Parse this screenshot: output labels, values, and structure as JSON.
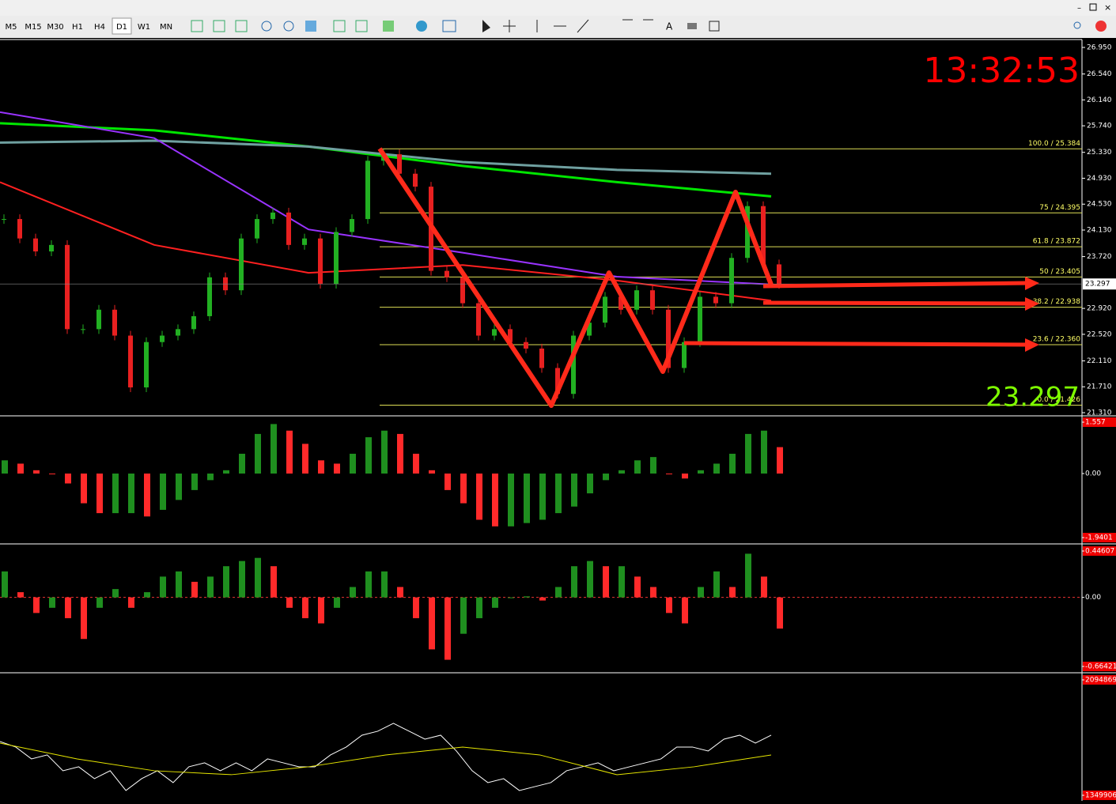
{
  "toolbar": {
    "timeframes": [
      "M5",
      "M15",
      "M30",
      "H1",
      "H4",
      "D1",
      "W1",
      "MN"
    ]
  },
  "clock": "13:32:53",
  "main_chart": {
    "type": "candlestick",
    "price_ticks": [
      {
        "value": 26.95,
        "label": "26.950"
      },
      {
        "value": 26.54,
        "label": "26.540"
      },
      {
        "value": 26.14,
        "label": "26.140"
      },
      {
        "value": 25.74,
        "label": "25.740"
      },
      {
        "value": 25.33,
        "label": "25.330"
      },
      {
        "value": 24.93,
        "label": "24.930"
      },
      {
        "value": 24.53,
        "label": "24.530"
      },
      {
        "value": 24.13,
        "label": "24.130"
      },
      {
        "value": 23.72,
        "label": "23.720"
      },
      {
        "value": 22.92,
        "label": "22.920"
      },
      {
        "value": 22.52,
        "label": "22.520"
      },
      {
        "value": 22.11,
        "label": "22.110"
      },
      {
        "value": 21.71,
        "label": "21.710"
      },
      {
        "value": 21.31,
        "label": "21.310"
      }
    ],
    "current_price": {
      "value": 23.297,
      "label": "23.297"
    },
    "closes": [
      24.3,
      24.0,
      23.8,
      23.9,
      22.6,
      22.6,
      22.9,
      22.5,
      21.7,
      22.4,
      22.5,
      22.6,
      22.8,
      23.4,
      23.2,
      24.0,
      24.3,
      24.4,
      23.9,
      24.0,
      23.3,
      24.1,
      24.3,
      25.2,
      25.3,
      25.0,
      24.8,
      23.5,
      23.4,
      23.0,
      22.5,
      22.6,
      22.4,
      22.3,
      22.0,
      21.6,
      22.5,
      22.7,
      23.1,
      22.9,
      23.2,
      22.9,
      22.0,
      22.4,
      23.1,
      23.0,
      23.7,
      24.5,
      23.6,
      23.297
    ],
    "moving_averages": [
      {
        "color": "#00e600",
        "values": [
          25.78,
          25.67,
          25.42,
          25.12,
          24.87,
          24.65
        ]
      },
      {
        "color": "#6fa0a0",
        "values": [
          25.48,
          25.51,
          25.42,
          25.18,
          25.06,
          25.0
        ]
      },
      {
        "color": "#9933ff",
        "values": [
          25.95,
          25.55,
          24.14,
          23.78,
          23.41,
          23.29
        ]
      },
      {
        "color": "#ff2020",
        "values": [
          24.87,
          23.9,
          23.47,
          23.59,
          23.35,
          23.04
        ]
      }
    ],
    "fibonacci": [
      {
        "label": "100.0  /  25.384",
        "value": 25.384
      },
      {
        "label": "75  /  24.395",
        "value": 24.395
      },
      {
        "label": "61.8  /  23.872",
        "value": 23.872
      },
      {
        "label": "50  /  23.405",
        "value": 23.405
      },
      {
        "label": "38.2  /  22.938",
        "value": 22.938
      },
      {
        "label": "23.6  /  22.360",
        "value": 22.36
      },
      {
        "label": "0.0  /  21.426",
        "value": 21.426
      }
    ]
  },
  "indicator_panels": [
    {
      "type": "histogram",
      "ticks": [
        1.557,
        {
          "value": 0,
          "label": "0.00"
        },
        -1.9401
      ],
      "values": [
        0.4,
        0.3,
        0.1,
        0,
        -0.3,
        -0.9,
        -1.2,
        -1.2,
        -1.2,
        -1.3,
        -1.1,
        -0.8,
        -0.5,
        -0.2,
        0.1,
        0.6,
        1.2,
        1.5,
        1.3,
        0.9,
        0.4,
        0.3,
        0.6,
        1.1,
        1.3,
        1.2,
        0.6,
        0.1,
        -0.5,
        -0.9,
        -1.4,
        -1.6,
        -1.6,
        -1.5,
        -1.4,
        -1.2,
        -1.0,
        -0.6,
        -0.2,
        0.1,
        0.4,
        0.5,
        0,
        -0.15,
        0.1,
        0.3,
        0.6,
        1.2,
        1.3,
        0.8
      ]
    },
    {
      "type": "histogram",
      "ticks": [
        0.44607,
        {
          "value": 0,
          "label": "0.00"
        },
        -0.66421
      ],
      "values": [
        0.25,
        0.05,
        -0.15,
        -0.1,
        -0.2,
        -0.4,
        -0.1,
        0.08,
        -0.1,
        0.05,
        0.2,
        0.25,
        0.15,
        0.2,
        0.3,
        0.35,
        0.38,
        0.3,
        -0.1,
        -0.2,
        -0.25,
        -0.1,
        0.1,
        0.25,
        0.25,
        0.1,
        -0.2,
        -0.5,
        -0.6,
        -0.35,
        -0.2,
        -0.1,
        0,
        0.01,
        -0.03,
        0.1,
        0.3,
        0.35,
        0.3,
        0.3,
        0.2,
        0.1,
        -0.15,
        -0.25,
        0.1,
        0.25,
        0.1,
        0.42,
        0.2,
        -0.3
      ]
    },
    {
      "type": "line",
      "ticks": [
        2094869,
        1349906
      ],
      "series": [
        {
          "color": "#ffffff",
          "values": [
            1696900,
            1661400,
            1584900,
            1610400,
            1508400,
            1533900,
            1457400,
            1508400,
            1380900,
            1457400,
            1508400,
            1431900,
            1533900,
            1559400,
            1508400,
            1559400,
            1508400,
            1584900,
            1559400,
            1533900,
            1533900,
            1610400,
            1661400,
            1737900,
            1763400,
            1814400,
            1763400,
            1712400,
            1737900,
            1635900,
            1508400,
            1431900,
            1457400,
            1380900,
            1406400,
            1431900,
            1508400,
            1533900,
            1559400,
            1508400,
            1533900,
            1559400,
            1584900,
            1661400,
            1661400,
            1635900,
            1712400,
            1737900,
            1686900,
            1737900
          ]
        },
        {
          "color": "#e6e600",
          "values": [
            1686900,
            1584900,
            1508400,
            1482900,
            1533900,
            1610400,
            1661400,
            1610400,
            1482900,
            1533900,
            1610400
          ]
        }
      ]
    }
  ]
}
